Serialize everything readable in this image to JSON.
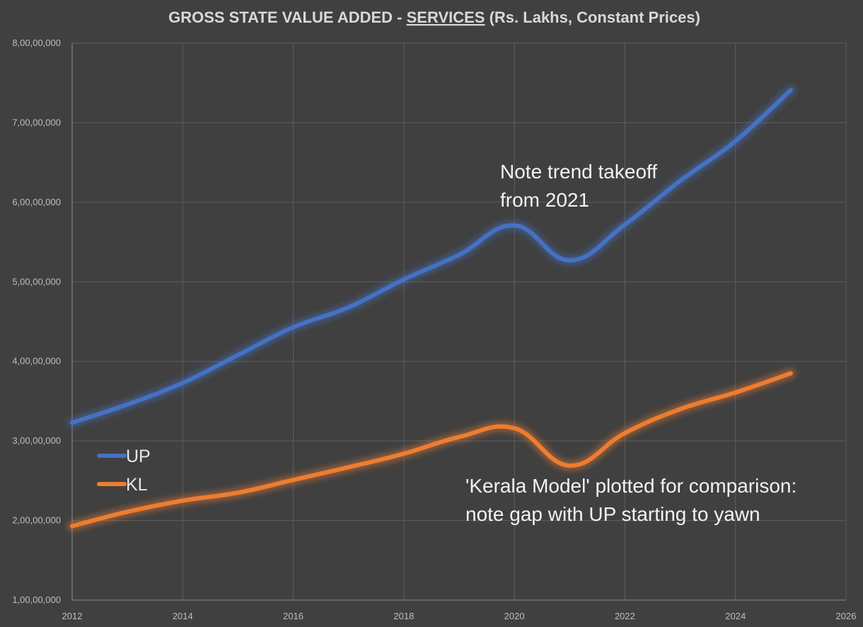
{
  "chart_data": {
    "type": "line",
    "title_parts": {
      "prefix": "GROSS STATE VALUE ADDED - ",
      "emphasis": "SERVICES",
      "suffix": " (Rs. Lakhs, Constant Prices)"
    },
    "x": [
      2012,
      2013,
      2014,
      2015,
      2016,
      2017,
      2018,
      2019,
      2020,
      2021,
      2022,
      2023,
      2024,
      2025
    ],
    "xlim": [
      2012,
      2026
    ],
    "ylim": [
      10000000,
      80000000
    ],
    "x_ticks": [
      2012,
      2014,
      2016,
      2018,
      2020,
      2022,
      2024,
      2026
    ],
    "y_ticks": [
      10000000,
      20000000,
      30000000,
      40000000,
      50000000,
      60000000,
      70000000,
      80000000
    ],
    "x_tick_labels": [
      "2012",
      "2014",
      "2016",
      "2018",
      "2020",
      "2022",
      "2024",
      "2026"
    ],
    "y_tick_labels": [
      "1,00,00,000",
      "2,00,00,000",
      "3,00,00,000",
      "4,00,00,000",
      "5,00,00,000",
      "6,00,00,000",
      "7,00,00,000",
      "8,00,00,000"
    ],
    "grid": true,
    "legend_position": "lower-left",
    "series": [
      {
        "name": "UP",
        "color": "#4472c4",
        "values": [
          32300000,
          34600000,
          37300000,
          40800000,
          44300000,
          46800000,
          50300000,
          53400000,
          57100000,
          52700000,
          57200000,
          62700000,
          67700000,
          74100000
        ]
      },
      {
        "name": "KL",
        "color": "#ed7d31",
        "values": [
          19300000,
          21100000,
          22500000,
          23500000,
          25100000,
          26700000,
          28400000,
          30500000,
          31600000,
          26900000,
          31000000,
          34000000,
          36100000,
          38500000
        ]
      }
    ],
    "annotations": [
      {
        "lines": [
          "Note trend takeoff",
          "from 2021"
        ]
      },
      {
        "lines": [
          "'Kerala Model' plotted for comparison:",
          "note gap with UP starting to yawn"
        ]
      }
    ]
  }
}
